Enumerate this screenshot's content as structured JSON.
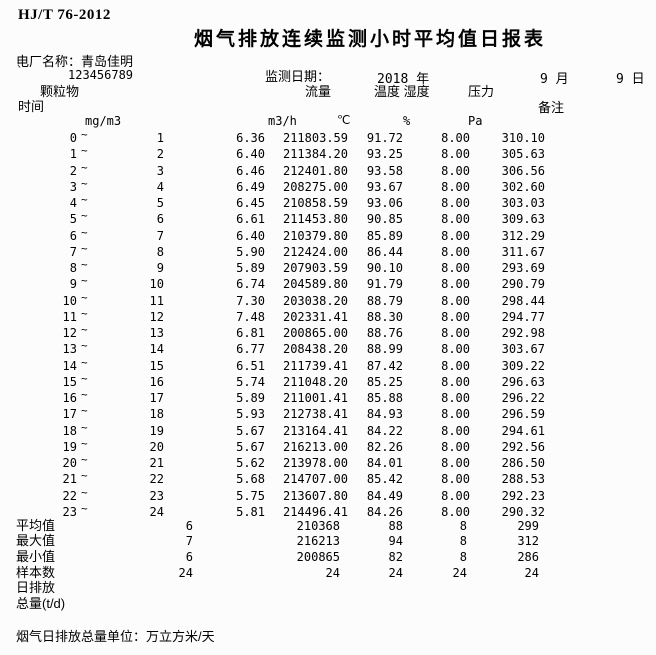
{
  "header": {
    "standard": "HJ/T 76-2012",
    "title": "烟气排放连续监测小时平均值日报表",
    "plant_label": "电厂名称：",
    "plant_name": "青岛佳明",
    "tick": "`",
    "plant_code": "123456789",
    "date_label": "监测日期：",
    "date_year": "2018 年",
    "date_month": "9 月",
    "date_day": "9 日",
    "col_particulate": "颗粒物",
    "col_time": "时间",
    "col_flow": "流量",
    "col_temp_humidity": "温度 湿度",
    "col_pressure": "压力",
    "col_remark": "备注",
    "unit_dust": "mg/m3",
    "unit_flow": "m3/h",
    "unit_temp": "℃",
    "unit_humidity": "%",
    "unit_pressure": "Pa"
  },
  "table": {
    "tilde": "~",
    "rows": [
      {
        "start": "0",
        "end": "1",
        "dust": "6.36",
        "flow": "211803.59",
        "temp": "91.72",
        "humidity": "8.00",
        "pressure": "310.10"
      },
      {
        "start": "1",
        "end": "2",
        "dust": "6.40",
        "flow": "211384.20",
        "temp": "93.25",
        "humidity": "8.00",
        "pressure": "305.63"
      },
      {
        "start": "2",
        "end": "3",
        "dust": "6.46",
        "flow": "212401.80",
        "temp": "93.58",
        "humidity": "8.00",
        "pressure": "306.56"
      },
      {
        "start": "3",
        "end": "4",
        "dust": "6.49",
        "flow": "208275.00",
        "temp": "93.67",
        "humidity": "8.00",
        "pressure": "302.60"
      },
      {
        "start": "4",
        "end": "5",
        "dust": "6.45",
        "flow": "210858.59",
        "temp": "93.06",
        "humidity": "8.00",
        "pressure": "303.03"
      },
      {
        "start": "5",
        "end": "6",
        "dust": "6.61",
        "flow": "211453.80",
        "temp": "90.85",
        "humidity": "8.00",
        "pressure": "309.63"
      },
      {
        "start": "6",
        "end": "7",
        "dust": "6.40",
        "flow": "210379.80",
        "temp": "85.89",
        "humidity": "8.00",
        "pressure": "312.29"
      },
      {
        "start": "7",
        "end": "8",
        "dust": "5.90",
        "flow": "212424.00",
        "temp": "86.44",
        "humidity": "8.00",
        "pressure": "311.67"
      },
      {
        "start": "8",
        "end": "9",
        "dust": "5.89",
        "flow": "207903.59",
        "temp": "90.10",
        "humidity": "8.00",
        "pressure": "293.69"
      },
      {
        "start": "9",
        "end": "10",
        "dust": "6.74",
        "flow": "204589.80",
        "temp": "91.79",
        "humidity": "8.00",
        "pressure": "290.79"
      },
      {
        "start": "10",
        "end": "11",
        "dust": "7.30",
        "flow": "203038.20",
        "temp": "88.79",
        "humidity": "8.00",
        "pressure": "298.44"
      },
      {
        "start": "11",
        "end": "12",
        "dust": "7.48",
        "flow": "202331.41",
        "temp": "88.30",
        "humidity": "8.00",
        "pressure": "294.77"
      },
      {
        "start": "12",
        "end": "13",
        "dust": "6.81",
        "flow": "200865.00",
        "temp": "88.76",
        "humidity": "8.00",
        "pressure": "292.98"
      },
      {
        "start": "13",
        "end": "14",
        "dust": "6.77",
        "flow": "208438.20",
        "temp": "88.99",
        "humidity": "8.00",
        "pressure": "303.67"
      },
      {
        "start": "14",
        "end": "15",
        "dust": "6.51",
        "flow": "211739.41",
        "temp": "87.42",
        "humidity": "8.00",
        "pressure": "309.22"
      },
      {
        "start": "15",
        "end": "16",
        "dust": "5.74",
        "flow": "211048.20",
        "temp": "85.25",
        "humidity": "8.00",
        "pressure": "296.63"
      },
      {
        "start": "16",
        "end": "17",
        "dust": "5.89",
        "flow": "211001.41",
        "temp": "85.88",
        "humidity": "8.00",
        "pressure": "296.22"
      },
      {
        "start": "17",
        "end": "18",
        "dust": "5.93",
        "flow": "212738.41",
        "temp": "84.93",
        "humidity": "8.00",
        "pressure": "296.59"
      },
      {
        "start": "18",
        "end": "19",
        "dust": "5.67",
        "flow": "213164.41",
        "temp": "84.22",
        "humidity": "8.00",
        "pressure": "294.61"
      },
      {
        "start": "19",
        "end": "20",
        "dust": "5.67",
        "flow": "216213.00",
        "temp": "82.26",
        "humidity": "8.00",
        "pressure": "292.56"
      },
      {
        "start": "20",
        "end": "21",
        "dust": "5.62",
        "flow": "213978.00",
        "temp": "84.01",
        "humidity": "8.00",
        "pressure": "286.50"
      },
      {
        "start": "21",
        "end": "22",
        "dust": "5.68",
        "flow": "214707.00",
        "temp": "85.42",
        "humidity": "8.00",
        "pressure": "288.53"
      },
      {
        "start": "22",
        "end": "23",
        "dust": "5.75",
        "flow": "213607.80",
        "temp": "84.49",
        "humidity": "8.00",
        "pressure": "292.23"
      },
      {
        "start": "23",
        "end": "24",
        "dust": "5.81",
        "flow": "214496.41",
        "temp": "84.26",
        "humidity": "8.00",
        "pressure": "290.32"
      }
    ]
  },
  "summary": {
    "rows": [
      {
        "label": "平均值",
        "dust": "6",
        "flow": "210368",
        "temp": "88",
        "humidity": "8",
        "pressure": "299"
      },
      {
        "label": "最大值",
        "dust": "7",
        "flow": "216213",
        "temp": "94",
        "humidity": "8",
        "pressure": "312"
      },
      {
        "label": "最小值",
        "dust": "6",
        "flow": "200865",
        "temp": "82",
        "humidity": "8",
        "pressure": "286"
      },
      {
        "label": "样本数",
        "dust": "24",
        "flow": "24",
        "temp": "24",
        "humidity": "24",
        "pressure": "24"
      },
      {
        "label": "日排放",
        "dust": "",
        "flow": "",
        "temp": "",
        "humidity": "",
        "pressure": ""
      },
      {
        "label": "总量(t/d)",
        "dust": "",
        "flow": "",
        "temp": "",
        "humidity": "",
        "pressure": ""
      }
    ]
  },
  "footer": {
    "note": "烟气日排放总量单位：万立方米/天"
  }
}
